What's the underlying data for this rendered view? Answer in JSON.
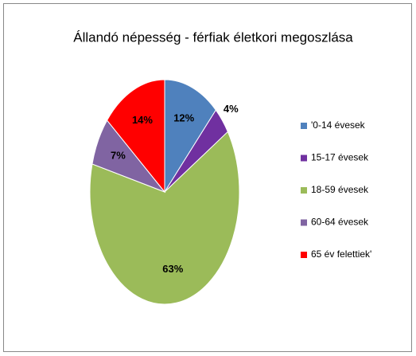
{
  "chart_data": {
    "type": "pie",
    "title": "Állandó népesség - férfiak életkori megoszlása",
    "categories": [
      "'0-14 évesek",
      "15-17 évesek",
      "18-59 évesek",
      "60-64 évesek",
      "65 év felettiek'"
    ],
    "values": [
      12,
      4,
      63,
      7,
      14
    ],
    "value_labels": [
      "12%",
      "4%",
      "63%",
      "7%",
      "14%"
    ],
    "colors": [
      "#4f81bd",
      "#7030a0",
      "#9bbb59",
      "#8064a2",
      "#ff0000"
    ],
    "legend": "right"
  }
}
